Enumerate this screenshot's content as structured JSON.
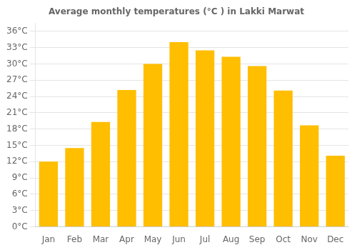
{
  "chart_data": {
    "type": "bar",
    "title": "Average monthly temperatures (°C ) in Lakki Marwat",
    "categories": [
      "Jan",
      "Feb",
      "Mar",
      "Apr",
      "May",
      "Jun",
      "Jul",
      "Aug",
      "Sep",
      "Oct",
      "Nov",
      "Dec"
    ],
    "values": [
      12,
      14.5,
      19.3,
      25.2,
      30,
      34,
      32.5,
      31.3,
      29.6,
      25.1,
      18.7,
      13.1
    ],
    "color": "#FFBE00",
    "ylim": [
      0,
      37.5
    ],
    "yticks": [
      {
        "value": 0,
        "label": "0°C"
      },
      {
        "value": 3,
        "label": "3°C"
      },
      {
        "value": 6,
        "label": "6°C"
      },
      {
        "value": 9,
        "label": "9°C"
      },
      {
        "value": 12,
        "label": "12°C"
      },
      {
        "value": 15,
        "label": "15°C"
      },
      {
        "value": 18,
        "label": "18°C"
      },
      {
        "value": 21,
        "label": "21°C"
      },
      {
        "value": 24,
        "label": "24°C"
      },
      {
        "value": 27,
        "label": "27°C"
      },
      {
        "value": 30,
        "label": "30°C"
      },
      {
        "value": 33,
        "label": "33°C"
      },
      {
        "value": 36,
        "label": "36°C"
      }
    ],
    "grid": true
  }
}
